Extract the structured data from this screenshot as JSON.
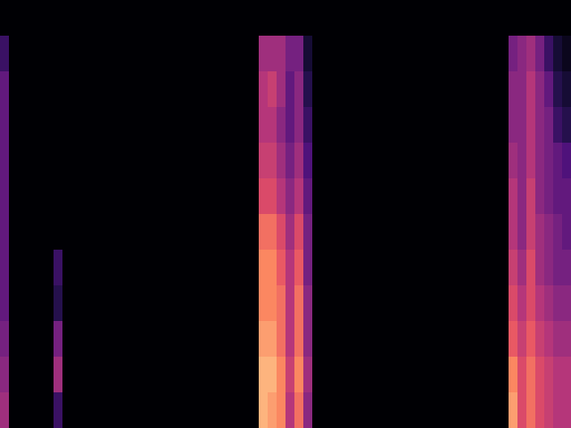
{
  "chart_data": {
    "type": "heatmap",
    "color": "magma",
    "tick_labels": false,
    "zlim": [
      0,
      1
    ],
    "cells": [
      [
        0,
        0,
        0,
        0,
        0,
        0,
        0,
        0,
        0,
        0,
        0,
        0,
        0,
        0,
        0,
        0,
        0,
        0,
        0,
        0,
        0,
        0,
        0,
        0,
        0,
        0,
        0,
        0,
        0,
        0,
        0,
        0,
        0,
        0,
        0,
        0,
        0,
        0,
        0,
        0,
        0,
        0,
        0,
        0,
        0,
        0,
        0,
        0,
        0,
        0,
        0,
        0,
        0,
        0,
        0,
        0,
        0,
        0,
        0,
        0,
        0,
        0,
        0,
        0
      ],
      [
        0.2,
        0,
        0,
        0,
        0,
        0,
        0,
        0,
        0,
        0,
        0,
        0,
        0,
        0,
        0,
        0,
        0,
        0,
        0,
        0,
        0,
        0,
        0,
        0,
        0,
        0,
        0,
        0,
        0,
        0.45,
        0.45,
        0.45,
        0.35,
        0.35,
        0.1,
        0,
        0,
        0,
        0,
        0,
        0,
        0,
        0,
        0,
        0,
        0,
        0,
        0,
        0,
        0,
        0,
        0,
        0,
        0,
        0,
        0,
        0,
        0.35,
        0.4,
        0.45,
        0.35,
        0.2,
        0.1,
        0.05
      ],
      [
        0.3,
        0,
        0,
        0,
        0,
        0,
        0,
        0,
        0,
        0,
        0,
        0,
        0,
        0,
        0,
        0,
        0,
        0,
        0,
        0,
        0,
        0,
        0,
        0,
        0,
        0,
        0,
        0,
        0,
        0.5,
        0.55,
        0.45,
        0.3,
        0.4,
        0.15,
        0,
        0,
        0,
        0,
        0,
        0,
        0,
        0,
        0,
        0,
        0,
        0,
        0,
        0,
        0,
        0,
        0,
        0,
        0,
        0,
        0,
        0,
        0.4,
        0.4,
        0.5,
        0.4,
        0.3,
        0.15,
        0.1
      ],
      [
        0.3,
        0,
        0,
        0,
        0,
        0,
        0,
        0,
        0,
        0,
        0,
        0,
        0,
        0,
        0,
        0,
        0,
        0,
        0,
        0,
        0,
        0,
        0,
        0,
        0,
        0,
        0,
        0,
        0,
        0.5,
        0.5,
        0.4,
        0.3,
        0.4,
        0.2,
        0,
        0,
        0,
        0,
        0,
        0,
        0,
        0,
        0,
        0,
        0,
        0,
        0,
        0,
        0,
        0,
        0,
        0,
        0,
        0,
        0,
        0,
        0.4,
        0.4,
        0.5,
        0.4,
        0.35,
        0.2,
        0.15
      ],
      [
        0.3,
        0,
        0,
        0,
        0,
        0,
        0,
        0,
        0,
        0,
        0,
        0,
        0,
        0,
        0,
        0,
        0,
        0,
        0,
        0,
        0,
        0,
        0,
        0,
        0,
        0,
        0,
        0,
        0,
        0.55,
        0.55,
        0.45,
        0.35,
        0.45,
        0.25,
        0,
        0,
        0,
        0,
        0,
        0,
        0,
        0,
        0,
        0,
        0,
        0,
        0,
        0,
        0,
        0,
        0,
        0,
        0,
        0,
        0,
        0,
        0.45,
        0.4,
        0.5,
        0.4,
        0.35,
        0.3,
        0.25
      ],
      [
        0.3,
        0,
        0,
        0,
        0,
        0,
        0,
        0,
        0,
        0,
        0,
        0,
        0,
        0,
        0,
        0,
        0,
        0,
        0,
        0,
        0,
        0,
        0,
        0,
        0,
        0,
        0,
        0,
        0,
        0.6,
        0.6,
        0.5,
        0.4,
        0.5,
        0.3,
        0,
        0,
        0,
        0,
        0,
        0,
        0,
        0,
        0,
        0,
        0,
        0,
        0,
        0,
        0,
        0,
        0,
        0,
        0,
        0,
        0,
        0,
        0.5,
        0.4,
        0.55,
        0.4,
        0.35,
        0.3,
        0.3
      ],
      [
        0.3,
        0,
        0,
        0,
        0,
        0,
        0,
        0,
        0,
        0,
        0,
        0,
        0,
        0,
        0,
        0,
        0,
        0,
        0,
        0,
        0,
        0,
        0,
        0,
        0,
        0,
        0,
        0,
        0,
        0.7,
        0.7,
        0.6,
        0.45,
        0.6,
        0.35,
        0,
        0,
        0,
        0,
        0,
        0,
        0,
        0,
        0,
        0,
        0,
        0,
        0,
        0,
        0,
        0,
        0,
        0,
        0,
        0,
        0,
        0,
        0.5,
        0.4,
        0.55,
        0.45,
        0.4,
        0.35,
        0.3
      ],
      [
        0.3,
        0,
        0,
        0,
        0,
        0,
        0.2,
        0,
        0,
        0,
        0,
        0,
        0,
        0,
        0,
        0,
        0,
        0,
        0,
        0,
        0,
        0,
        0,
        0,
        0,
        0,
        0,
        0,
        0,
        0.75,
        0.75,
        0.65,
        0.5,
        0.65,
        0.35,
        0,
        0,
        0,
        0,
        0,
        0,
        0,
        0,
        0,
        0,
        0,
        0,
        0,
        0,
        0,
        0,
        0,
        0,
        0,
        0,
        0,
        0,
        0.55,
        0.45,
        0.6,
        0.45,
        0.4,
        0.35,
        0.35
      ],
      [
        0.3,
        0,
        0,
        0,
        0,
        0,
        0.15,
        0,
        0,
        0,
        0,
        0,
        0,
        0,
        0,
        0,
        0,
        0,
        0,
        0,
        0,
        0,
        0,
        0,
        0,
        0,
        0,
        0,
        0,
        0.75,
        0.75,
        0.7,
        0.5,
        0.7,
        0.4,
        0,
        0,
        0,
        0,
        0,
        0,
        0,
        0,
        0,
        0,
        0,
        0,
        0,
        0,
        0,
        0,
        0,
        0,
        0,
        0,
        0,
        0,
        0.6,
        0.5,
        0.6,
        0.5,
        0.45,
        0.4,
        0.4
      ],
      [
        0.35,
        0,
        0,
        0,
        0,
        0,
        0.35,
        0,
        0,
        0,
        0,
        0,
        0,
        0,
        0,
        0,
        0,
        0,
        0,
        0,
        0,
        0,
        0,
        0,
        0,
        0,
        0,
        0,
        0,
        0.8,
        0.8,
        0.7,
        0.5,
        0.7,
        0.4,
        0,
        0,
        0,
        0,
        0,
        0,
        0,
        0,
        0,
        0,
        0,
        0,
        0,
        0,
        0,
        0,
        0,
        0,
        0,
        0,
        0,
        0,
        0.65,
        0.55,
        0.65,
        0.55,
        0.5,
        0.45,
        0.45
      ],
      [
        0.4,
        0,
        0,
        0,
        0,
        0,
        0.45,
        0,
        0,
        0,
        0,
        0,
        0,
        0,
        0,
        0,
        0,
        0,
        0,
        0,
        0,
        0,
        0,
        0,
        0,
        0,
        0,
        0,
        0,
        0.85,
        0.85,
        0.75,
        0.55,
        0.75,
        0.45,
        0,
        0,
        0,
        0,
        0,
        0,
        0,
        0,
        0,
        0,
        0,
        0,
        0,
        0,
        0,
        0,
        0,
        0,
        0,
        0,
        0,
        0,
        0.75,
        0.6,
        0.7,
        0.6,
        0.55,
        0.5,
        0.5
      ],
      [
        0.45,
        0,
        0,
        0,
        0,
        0,
        0.2,
        0,
        0,
        0,
        0,
        0,
        0,
        0,
        0,
        0,
        0,
        0,
        0,
        0,
        0,
        0,
        0,
        0,
        0,
        0,
        0,
        0,
        0,
        0.85,
        0.8,
        0.75,
        0.5,
        0.7,
        0.4,
        0,
        0,
        0,
        0,
        0,
        0,
        0,
        0,
        0,
        0,
        0,
        0,
        0,
        0,
        0,
        0,
        0,
        0,
        0,
        0,
        0,
        0,
        0.8,
        0.6,
        0.7,
        0.6,
        0.55,
        0.5,
        0.5
      ]
    ]
  }
}
